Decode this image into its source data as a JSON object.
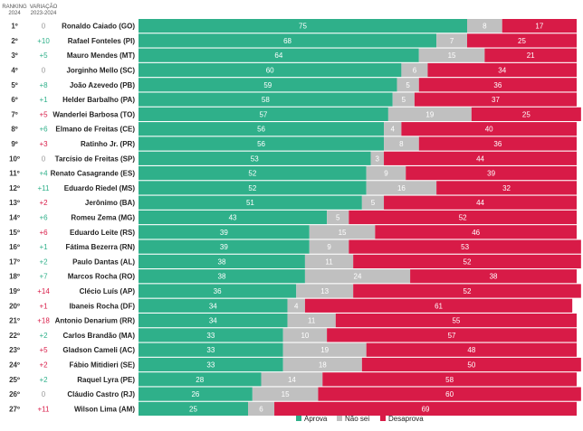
{
  "chart_data": {
    "type": "bar",
    "stacked": true,
    "orientation": "horizontal",
    "header": {
      "ranking": [
        "RANKING",
        "2024"
      ],
      "change": [
        "VARIAÇÃO",
        "2023-2024"
      ]
    },
    "categories": [
      "Ronaldo Caiado (GO)",
      "Rafael Fonteles (PI)",
      "Mauro Mendes (MT)",
      "Jorginho Mello (SC)",
      "João Azevedo (PB)",
      "Helder Barbalho (PA)",
      "Wanderlei Barbosa (TO)",
      "Elmano de Freitas (CE)",
      "Ratinho Jr. (PR)",
      "Tarcísio de Freitas (SP)",
      "Renato Casagrande (ES)",
      "Eduardo Riedel (MS)",
      "Jerônimo (BA)",
      "Romeu Zema (MG)",
      "Eduardo Leite (RS)",
      "Fátima Bezerra (RN)",
      "Paulo Dantas (AL)",
      "Marcos Rocha (RO)",
      "Clécio Luís (AP)",
      "Ibaneis Rocha (DF)",
      "Antonio Denarium (RR)",
      "Carlos Brandão (MA)",
      "Gladson Cameli (AC)",
      "Fábio Mitidieri (SE)",
      "Raquel Lyra (PE)",
      "Cláudio Castro (RJ)",
      "Wilson Lima (AM)"
    ],
    "ranks": [
      "1º",
      "2º",
      "3º",
      "4º",
      "5º",
      "6º",
      "7º",
      "8º",
      "9º",
      "10º",
      "11º",
      "12º",
      "13º",
      "14º",
      "15º",
      "16º",
      "17º",
      "18º",
      "19º",
      "20º",
      "21º",
      "22º",
      "23º",
      "24º",
      "25º",
      "26º",
      "27º"
    ],
    "changes": [
      "0",
      "+10",
      "+5",
      "0",
      "+8",
      "+1",
      "+5",
      "+6",
      "+3",
      "0",
      "+4",
      "+11",
      "+2",
      "+6",
      "+6",
      "+1",
      "+2",
      "+7",
      "+14",
      "+1",
      "+18",
      "+2",
      "+5",
      "+2",
      "+2",
      "0",
      "+11"
    ],
    "change_directions": [
      "zero",
      "up",
      "up",
      "zero",
      "up",
      "up",
      "down",
      "up",
      "down",
      "zero",
      "up",
      "up",
      "down",
      "up",
      "down",
      "up",
      "up",
      "up",
      "down",
      "down",
      "down",
      "up",
      "down",
      "down",
      "up",
      "zero",
      "down"
    ],
    "series": [
      {
        "name": "Aprova",
        "color": "#2fb08a",
        "values": [
          75,
          68,
          64,
          60,
          59,
          58,
          57,
          56,
          56,
          53,
          52,
          52,
          51,
          43,
          39,
          39,
          38,
          38,
          36,
          34,
          34,
          33,
          33,
          33,
          28,
          26,
          25
        ]
      },
      {
        "name": "Não sei",
        "color": "#c0c0c0",
        "values": [
          8,
          7,
          15,
          6,
          5,
          5,
          19,
          4,
          8,
          3,
          9,
          16,
          5,
          5,
          15,
          9,
          11,
          24,
          13,
          4,
          11,
          10,
          19,
          18,
          14,
          15,
          6
        ]
      },
      {
        "name": "Desaprova",
        "color": "#d81b47",
        "values": [
          17,
          25,
          21,
          34,
          36,
          37,
          25,
          40,
          36,
          44,
          39,
          32,
          44,
          52,
          46,
          53,
          52,
          38,
          52,
          61,
          55,
          57,
          48,
          50,
          58,
          60,
          69
        ]
      }
    ],
    "xlim": [
      0,
      100
    ],
    "legend": "bottom-right",
    "grid": false
  }
}
